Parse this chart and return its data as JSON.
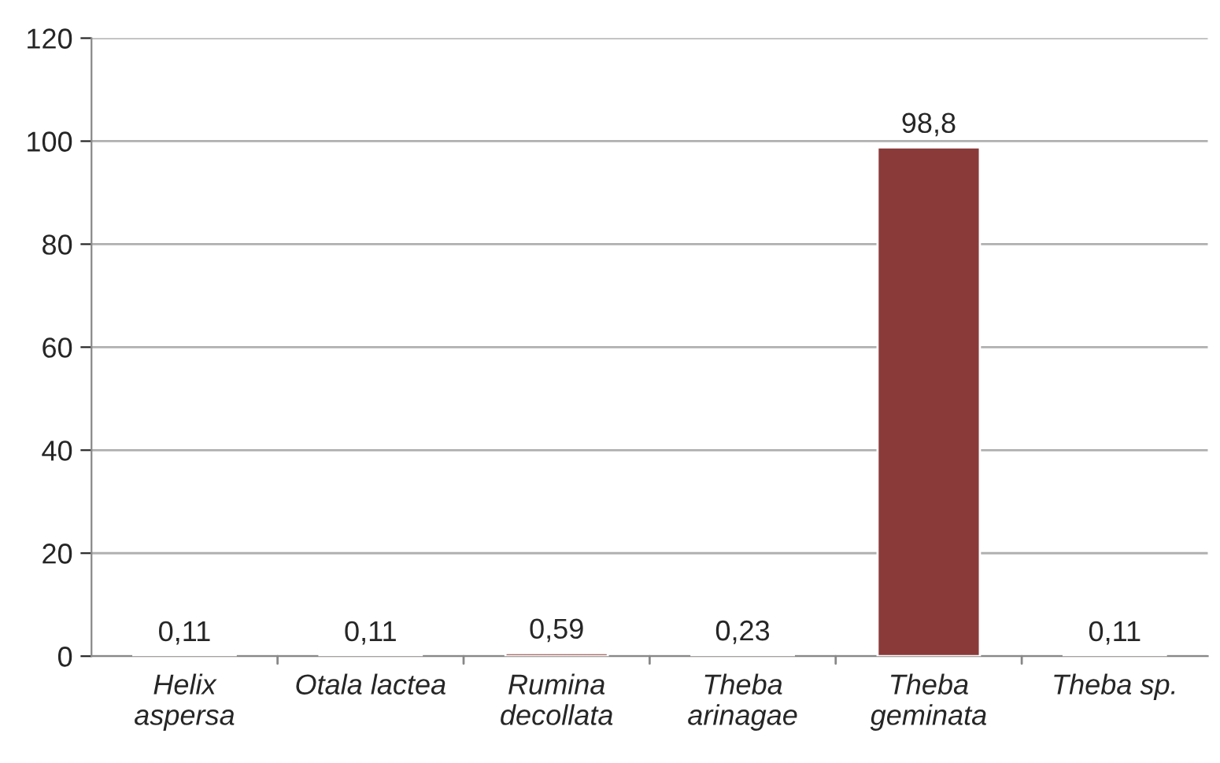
{
  "chart_data": {
    "type": "bar",
    "categories": [
      "Helix\naspersa",
      "Otala lactea",
      "Rumina\ndecollata",
      "Theba\narinagae",
      "Theba\ngeminata",
      "Theba sp."
    ],
    "values": [
      0.11,
      0.11,
      0.59,
      0.23,
      98.8,
      0.11
    ],
    "value_labels": [
      "0,11",
      "0,11",
      "0,59",
      "0,23",
      "98,8",
      "0,11"
    ],
    "color": "#8b3a3a",
    "ylim": [
      0,
      120
    ],
    "yticks": [
      0,
      20,
      40,
      60,
      80,
      100,
      120
    ],
    "grid": "y"
  }
}
